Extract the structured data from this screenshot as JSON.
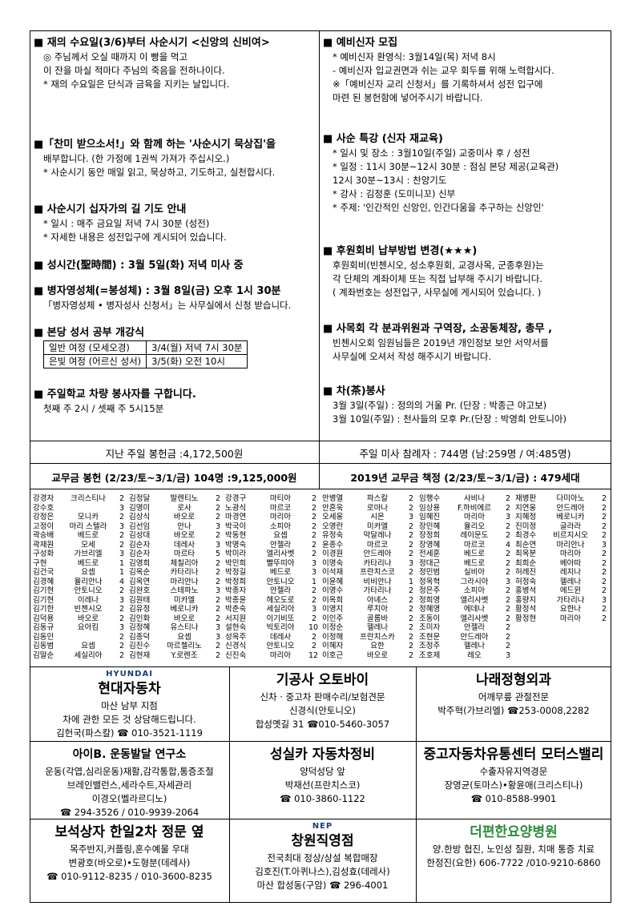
{
  "notices_left": [
    {
      "title": "■ 재의 수요일(3/6)부터 사순시기 <신앙의 신비여>",
      "lines": [
        "◎ 주님께서 오실 때까지 이 빵을 먹고",
        "이 잔을 마실 적마다 주님의 죽음을 전하나이다.",
        "* 재의 수요일은 단식과 금육을 지키는 날입니다."
      ]
    },
    {
      "title": "■「찬미 받으소서!」와 함께 하는 '사순시기 묵상집'을",
      "lines": [
        "배부합니다. (한 가정에 1권씩 가져가 주십시오.)",
        "* 사순시기 동안 매일 읽고, 묵상하고, 기도하고, 실천합시다."
      ]
    },
    {
      "title": "■ 사순시기 십자가의 길 기도 안내",
      "lines": [
        "* 일시 : 매주 금요일 저녁 7시 30분 (성전)",
        "* 자세한 내용은 성전입구에 게시되어 있습니다."
      ]
    },
    {
      "title": "■ 성시간(聖時間) : 3월 5일(화) 저녁 미사 중",
      "lines": []
    },
    {
      "title": "■ 병자영성체(=봉성체) : 3월 8일(금) 오후 1시 30분",
      "lines": [
        "「병자영성체 • 병자성사 신청서」는 사무실에서 신청 받습니다."
      ]
    },
    {
      "title": "■ 본당 성서 공부 개강식",
      "lines": [],
      "table": [
        [
          "일반 여정 (모세오경)",
          "3/4(월) 저녁 7시 30분"
        ],
        [
          "은빛 여정 (어르신 성서)",
          "3/5(화) 오전 10시"
        ]
      ]
    },
    {
      "title": "■ 주일학교 차량 봉사자를 구합니다.",
      "lines": [
        "첫째 주 2시 / 셋째 주 5시15분"
      ]
    }
  ],
  "notices_right": [
    {
      "title": "■ 예비신자 모집",
      "lines": [
        "* 예비신자 환영식: 3월14일(목) 저녁 8시",
        "- 예비신자 입교권면과 쉬는 교우 회두를 위해 노력합시다.",
        "※「예비신자 교리 신청서」를 기록하셔서 성전 입구에",
        "마련 된 봉헌함에 넣어주시기 바랍니다."
      ]
    },
    {
      "title": "■ 사순 특강 (신자 재교육)",
      "lines": [
        "* 일시 및 장소 : 3월10일(주일) 교중미사 후 / 성전",
        "* 일정 : 11시 30분~12시 30분 : 점심 본당 제공(교육관)",
        "12시 30분~13시 : 찬양기도",
        "* 강사 : 김정훈 (도미니꼬) 신부",
        "* 주제: '인간적인 신앙인, 인간다움을 추구하는 신앙인'"
      ]
    },
    {
      "title": "■ 후원회비 납부방법 변경(★★★)",
      "lines": [
        "후원회비(빈첸시오, 성소후원회, 교경사목, 군종후원)는",
        "각 단체의 계좌이체 또는 직접 납부해 주시기 바랍니다.",
        "( 계좌번호는 성전입구, 사무실에 게시되어 있습니다. )"
      ]
    },
    {
      "title": "■ 사목회 각 분과위원과 구역장, 소공동체장, 총무 ,",
      "lines": [
        "빈첸시오회 임원님들은 2019년 개인정보 보안 서약서를",
        "사무실에 오셔서 작성 해주시기 바랍니다."
      ]
    },
    {
      "title": "■ 차(茶)봉사",
      "lines": [
        "3월 3일(주일) : 정의의 거울 Pr. (단장 : 박종근 야고보)",
        "3월 10일(주일) : 천사들의 모후 Pr.(단장 : 박영희 안토니아)"
      ]
    }
  ],
  "offering": [
    "지난 주일 봉헌금 :4,172,500원",
    "주일 미사 참례자 : 744명 (남:259명 / 여:485명)"
  ],
  "headers": [
    "교무금 봉헌 (2/23/토~3/1/금) 104명 :9,125,000원",
    "2019년 교무금 책정 (2/23/토~3/1/금) : 479세대"
  ],
  "members": [
    [
      [
        "강경자",
        "크리스티나",
        2
      ],
      [
        "강수호",
        null,
        3
      ],
      [
        "강정은",
        "모니카",
        2
      ],
      [
        "고정이",
        "마리 스텔라",
        3
      ],
      [
        "곽승배",
        "베드로",
        2
      ],
      [
        "곽재원",
        "모세",
        2
      ],
      [
        "구성화",
        "가브리엘",
        3
      ],
      [
        "구현",
        "베드로",
        1
      ],
      [
        "김건국",
        "요셉",
        1
      ],
      [
        "김경혜",
        "율리안나",
        4
      ],
      [
        "김기현",
        "안토니오",
        2
      ],
      [
        "김기현",
        "이레나",
        3
      ],
      [
        "김기한",
        "빈첸시오",
        2
      ],
      [
        "김덕용",
        "바오로",
        2
      ],
      [
        "김동규",
        "요아킴",
        3
      ],
      [
        "김동민",
        null,
        2
      ],
      [
        "김동범",
        "요셉",
        2
      ],
      [
        "김말순",
        "세실리아",
        2
      ]
    ],
    [
      [
        "김정달",
        "발렌티노",
        2
      ],
      [
        "김명미",
        "로사",
        2
      ],
      [
        "김상식",
        "바오로",
        2
      ],
      [
        "김선임",
        "안나",
        3
      ],
      [
        "김성대",
        "바오로",
        2
      ],
      [
        "김순자",
        "데레사",
        3
      ],
      [
        "김순자",
        "마르타",
        5
      ],
      [
        "김영희",
        "체칠리아",
        2
      ],
      [
        "김옥순",
        "카타리나",
        2
      ],
      [
        "김옥연",
        "마리안나",
        2
      ],
      [
        "김완호",
        "스테파노",
        3
      ],
      [
        "김원태",
        "미카엘",
        2
      ],
      [
        "김유정",
        "베로니카",
        2
      ],
      [
        "김인화",
        "바오로",
        2
      ],
      [
        "김정혜",
        "유스티나",
        3
      ],
      [
        "김종덕",
        "요셉",
        3
      ],
      [
        "김진수",
        "마르첼리노",
        2
      ],
      [
        "김현재",
        "Y.로렌조",
        2
      ]
    ],
    [
      [
        "강경구",
        "마티아",
        2
      ],
      [
        "노광식",
        "마르코",
        2
      ],
      [
        "마경연",
        "마리아",
        2
      ],
      [
        "박국이",
        "소피아",
        2
      ],
      [
        "박동현",
        "요셉",
        2
      ],
      [
        "박명숙",
        "안젤라",
        2
      ],
      [
        "박미라",
        "엘리사벳",
        2
      ],
      [
        "박민희",
        "빨뚜띠아",
        3
      ],
      [
        "박정길",
        "베드로",
        3
      ],
      [
        "박정희",
        "안토니오",
        1
      ],
      [
        "박종자",
        "안젤라",
        2
      ],
      [
        "박종윤",
        "헤오도로",
        2
      ],
      [
        "박춘숙",
        "세실리아",
        3
      ],
      [
        "서지원",
        "이기비또",
        2
      ],
      [
        "설현숙",
        "빅토리아",
        10
      ],
      [
        "성옥주",
        "데레사",
        2
      ],
      [
        "신경식",
        "안토니오",
        2
      ],
      [
        "신진숙",
        "마리아",
        12
      ]
    ],
    [
      [
        "안병열",
        "파스칼",
        2
      ],
      [
        "안혼욱",
        "로마나",
        2
      ],
      [
        "오세웅",
        "시몬",
        3
      ],
      [
        "오영란",
        "미카엘",
        2
      ],
      [
        "유정숙",
        "막달레나",
        2
      ],
      [
        "윤종수",
        "마르코",
        2
      ],
      [
        "이경원",
        "안드레아",
        2
      ],
      [
        "이명숙",
        "카타리나",
        3
      ],
      [
        "이석재",
        "프란치스코",
        2
      ],
      [
        "이윤혜",
        "비비안나",
        1
      ],
      [
        "이영수",
        "가타리나",
        2
      ],
      [
        "이옥희",
        "아녜스",
        2
      ],
      [
        "이영지",
        "루치아",
        2
      ],
      [
        "이인주",
        "골롬바",
        2
      ],
      [
        "이정순",
        "헬레나",
        2
      ],
      [
        "이정해",
        "프란치스카",
        2
      ],
      [
        "이혜자",
        "요한",
        2
      ],
      [
        "이호근",
        "바오로",
        2
      ]
    ],
    [
      [
        "임행수",
        "사비나",
        2
      ],
      [
        "임상용",
        "F.하비에르",
        2
      ],
      [
        "임혜진",
        "마리아",
        3
      ],
      [
        "장민혜",
        "율리오",
        2
      ],
      [
        "장정희",
        "레이문도",
        2
      ],
      [
        "장영혜",
        "마르코",
        4
      ],
      [
        "전세훈",
        "베드로",
        2
      ],
      [
        "정대근",
        "베드로",
        2
      ],
      [
        "정민범",
        "실비아",
        2
      ],
      [
        "정옥혁",
        "그라시아",
        3
      ],
      [
        "정은주",
        "소피아",
        2
      ],
      [
        "정희영",
        "엘리사벳",
        2
      ],
      [
        "정혜영",
        "에데나",
        2
      ],
      [
        "조동이",
        "엘리사벳",
        2
      ],
      [
        "조미자",
        "안젤라",
        2
      ],
      [
        "조현문",
        "안드레아",
        2
      ],
      [
        "조정주",
        "헬레나",
        2
      ],
      [
        "조호제",
        "레오",
        3
      ]
    ],
    [
      [
        "재병판",
        "다미아노",
        2
      ],
      [
        "지연웅",
        "안드레아",
        2
      ],
      [
        "지혜정",
        "베로니카",
        2
      ],
      [
        "진미정",
        "글라라",
        2
      ],
      [
        "최경수",
        "비르지시오",
        2
      ],
      [
        "최순연",
        "마리안나",
        3
      ],
      [
        "최옥분",
        "마리아",
        2
      ],
      [
        "최희순",
        "베아따",
        2
      ],
      [
        "허례진",
        "레지나",
        2
      ],
      [
        "허정숙",
        "헬레나",
        2
      ],
      [
        "홍병석",
        "에드윈",
        2
      ],
      [
        "홍량지",
        "가타리나",
        3
      ],
      [
        "황정석",
        "요한나",
        2
      ],
      [
        "황정현",
        "마리아",
        2
      ]
    ]
  ],
  "ads": [
    {
      "logo": "HYUNDAI",
      "lines": [
        "현대자동차",
        "마산 남부 지점",
        "차에 관한 모든 것 상담해드립니다.",
        "김헌국(파스칼) ☎ 010-3521-1119"
      ]
    },
    {
      "lines": [
        "기공사 오토바이",
        "신차 · 중고차 판매수리/보험견문",
        "신경식(안토니오)",
        "합성옛길 31 ☎010-5460-3057"
      ]
    },
    {
      "lines": [
        "나래정형외과",
        "어깨무릎 관절전문",
        "박주혁(가브리엘) ☎253-0008,2282"
      ]
    },
    {
      "lines": [
        "아이B. 운동발달 연구소",
        "운동(각엽,심리운동)재활,감각통합,통증조절",
        "브레인밸런스,세라수트,자세관리",
        "이경오(벨라르디노)",
        "☎ 294-3526 / 010-9939-2064"
      ]
    },
    {
      "lines": [
        "성실카 자동차정비",
        "양덕성당 앞",
        "박재선(프란치스코)",
        "☎ 010-3860-1122"
      ]
    },
    {
      "lines": [
        "중고자동차유통센터 모터스밸리",
        "수출자유지역경문",
        "장영균(토마스)•황윤애(크리스티나)",
        "☎ 010-8588-9901"
      ]
    },
    {
      "lines": [
        "보석상자 한일2차 정문 옆",
        "목주반지,커플링,혼수예물 우대",
        "변광호(바오로)•도형분(데레사)",
        "☎ 010-9112-8235 / 010-3600-8235"
      ]
    },
    {
      "logo": "NEP",
      "lines": [
        "창원직영점",
        "전국최대 정상/상설 복합매장",
        "김호진(T.아퀴나스),김성효(데레사)",
        "마산 합성동(구암) ☎ 296-4001"
      ]
    },
    {
      "lines": [
        "더편한요양병원",
        "양.한방 협진, 노인성 질환, 치매 통증 치료",
        "한정진(요한) 606-7722 /010-9210-6860"
      ]
    }
  ]
}
